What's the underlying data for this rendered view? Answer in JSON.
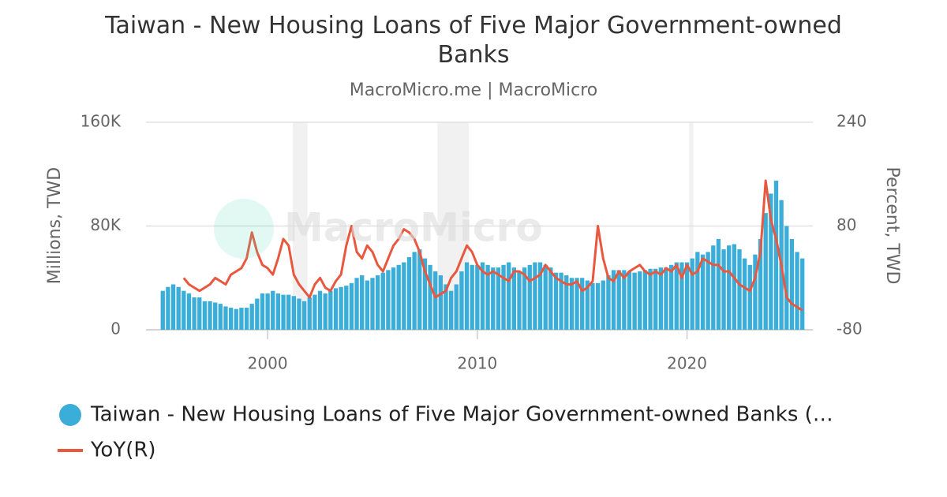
{
  "chart_data": {
    "type": "bar-line",
    "title": "Taiwan - New Housing Loans of Five Major Government-owned Banks",
    "subtitle": "MacroMicro.me | MacroMicro",
    "watermark": "MacroMicro",
    "y_label": "Millions, TWD",
    "y2_label": "Percent, TWD",
    "xlim": [
      1994.2,
      2026
    ],
    "xticks": [
      2000,
      2010,
      2020
    ],
    "ylim": [
      0,
      160000
    ],
    "yticks": [
      {
        "value": 0,
        "label": "0"
      },
      {
        "value": 80000,
        "label": "80K"
      },
      {
        "value": 160000,
        "label": "160K"
      }
    ],
    "y2lim": [
      -80,
      240
    ],
    "y2ticks": [
      -80,
      80,
      240
    ],
    "grid": true,
    "shaded_periods": [
      [
        2001.2,
        2001.9
      ],
      [
        2008.1,
        2009.6
      ],
      [
        2020.1,
        2020.3
      ]
    ],
    "x": [
      1995,
      1995.25,
      1995.5,
      1995.75,
      1996,
      1996.25,
      1996.5,
      1996.75,
      1997,
      1997.25,
      1997.5,
      1997.75,
      1998,
      1998.25,
      1998.5,
      1998.75,
      1999,
      1999.25,
      1999.5,
      1999.75,
      2000,
      2000.25,
      2000.5,
      2000.75,
      2001,
      2001.25,
      2001.5,
      2001.75,
      2002,
      2002.25,
      2002.5,
      2002.75,
      2003,
      2003.25,
      2003.5,
      2003.75,
      2004,
      2004.25,
      2004.5,
      2004.75,
      2005,
      2005.25,
      2005.5,
      2005.75,
      2006,
      2006.25,
      2006.5,
      2006.75,
      2007,
      2007.25,
      2007.5,
      2007.75,
      2008,
      2008.25,
      2008.5,
      2008.75,
      2009,
      2009.25,
      2009.5,
      2009.75,
      2010,
      2010.25,
      2010.5,
      2010.75,
      2011,
      2011.25,
      2011.5,
      2011.75,
      2012,
      2012.25,
      2012.5,
      2012.75,
      2013,
      2013.25,
      2013.5,
      2013.75,
      2014,
      2014.25,
      2014.5,
      2014.75,
      2015,
      2015.25,
      2015.5,
      2015.75,
      2016,
      2016.25,
      2016.5,
      2016.75,
      2017,
      2017.25,
      2017.5,
      2017.75,
      2018,
      2018.25,
      2018.5,
      2018.75,
      2019,
      2019.25,
      2019.5,
      2019.75,
      2020,
      2020.25,
      2020.5,
      2020.75,
      2021,
      2021.25,
      2021.5,
      2021.75,
      2022,
      2022.25,
      2022.5,
      2022.75,
      2023,
      2023.25,
      2023.5,
      2023.75,
      2024,
      2024.25,
      2024.5,
      2024.75,
      2025,
      2025.25,
      2025.5
    ],
    "series": [
      {
        "name": "Taiwan - New Housing Loans of Five Major Government-owned Banks (…",
        "color": "#3aaed8",
        "kind": "bar",
        "values": [
          30000,
          33000,
          35000,
          33000,
          30000,
          28000,
          25000,
          25000,
          22000,
          22000,
          21000,
          20000,
          18000,
          17000,
          16000,
          17000,
          17000,
          20000,
          24000,
          28000,
          28000,
          30000,
          28000,
          27000,
          27000,
          26000,
          24000,
          22000,
          25000,
          27000,
          30000,
          28000,
          30000,
          32000,
          33000,
          34000,
          36000,
          40000,
          42000,
          38000,
          40000,
          42000,
          44000,
          46000,
          48000,
          50000,
          52000,
          56000,
          60000,
          62000,
          55000,
          50000,
          45000,
          42000,
          35000,
          30000,
          35000,
          45000,
          52000,
          50000,
          50000,
          52000,
          50000,
          48000,
          48000,
          50000,
          52000,
          48000,
          45000,
          48000,
          50000,
          52000,
          52000,
          50000,
          48000,
          44000,
          44000,
          42000,
          40000,
          40000,
          40000,
          38000,
          36000,
          36000,
          38000,
          42000,
          46000,
          46000,
          46000,
          45000,
          44000,
          45000,
          46000,
          47000,
          47000,
          48000,
          48000,
          50000,
          52000,
          52000,
          52000,
          55000,
          60000,
          58000,
          60000,
          65000,
          70000,
          62000,
          65000,
          66000,
          62000,
          55000,
          50000,
          58000,
          70000,
          90000,
          105000,
          115000,
          100000,
          80000,
          70000,
          60000,
          55000
        ]
      },
      {
        "name": "YoY(R)",
        "color": "#e9573f",
        "kind": "line",
        "axis": "y2",
        "values": [
          null,
          null,
          null,
          null,
          0,
          -10,
          -15,
          -20,
          -15,
          -10,
          0,
          -5,
          -10,
          5,
          10,
          15,
          30,
          70,
          40,
          20,
          15,
          5,
          30,
          60,
          50,
          5,
          -10,
          -20,
          -30,
          -10,
          0,
          -15,
          -20,
          -5,
          5,
          50,
          80,
          40,
          30,
          50,
          40,
          20,
          10,
          30,
          50,
          60,
          75,
          70,
          60,
          40,
          10,
          -10,
          -30,
          -25,
          -20,
          0,
          10,
          30,
          50,
          40,
          20,
          10,
          5,
          10,
          5,
          0,
          -5,
          10,
          10,
          5,
          -5,
          0,
          5,
          20,
          10,
          0,
          -5,
          -10,
          -10,
          -5,
          -20,
          -15,
          -5,
          80,
          30,
          0,
          -5,
          10,
          0,
          10,
          15,
          20,
          10,
          5,
          10,
          5,
          15,
          10,
          20,
          0,
          20,
          5,
          10,
          30,
          25,
          20,
          20,
          10,
          10,
          0,
          -10,
          -15,
          -20,
          0,
          40,
          150,
          90,
          60,
          20,
          -30,
          -40,
          -45,
          -50
        ]
      }
    ]
  }
}
